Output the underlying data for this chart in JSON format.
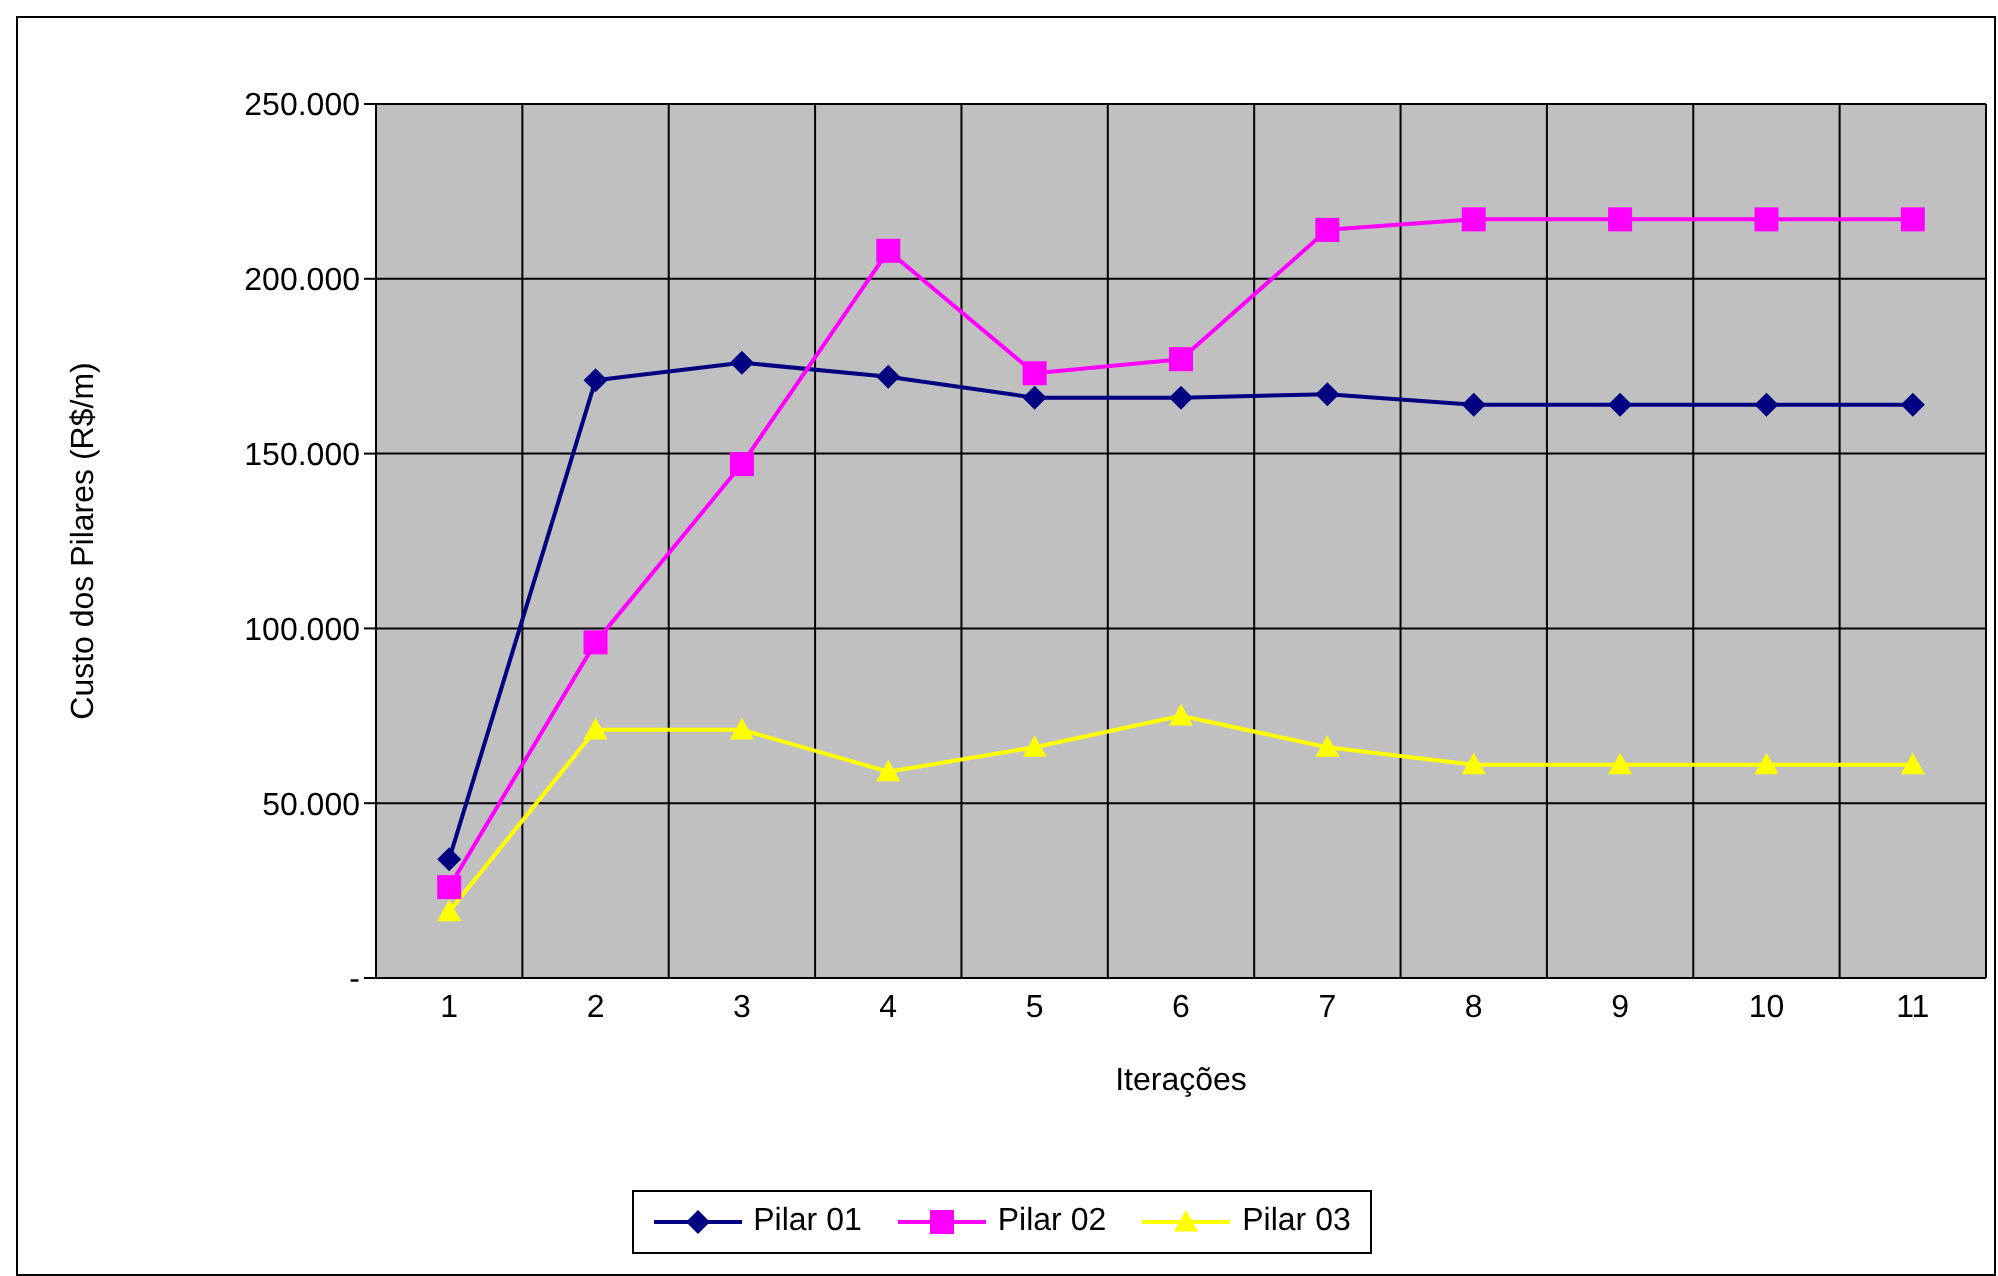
{
  "chart_data": {
    "type": "line",
    "xlabel": "Iterações",
    "ylabel": "Custo dos Pilares (R$/m)",
    "categories": [
      "1",
      "2",
      "3",
      "4",
      "5",
      "6",
      "7",
      "8",
      "9",
      "10",
      "11"
    ],
    "series": [
      {
        "name": "Pilar 01",
        "color": "#000080",
        "marker": "diamond",
        "values": [
          34000,
          171000,
          176000,
          172000,
          166000,
          166000,
          167000,
          164000,
          164000,
          164000,
          164000
        ]
      },
      {
        "name": "Pilar 02",
        "color": "#ff00ff",
        "marker": "square",
        "values": [
          26000,
          96000,
          147000,
          208000,
          173000,
          177000,
          214000,
          217000,
          217000,
          217000,
          217000
        ]
      },
      {
        "name": "Pilar 03",
        "color": "#ffff00",
        "marker": "triangle",
        "values": [
          19000,
          71000,
          71000,
          59000,
          66000,
          75000,
          66000,
          61000,
          61000,
          61000,
          61000
        ]
      }
    ],
    "ylim": [
      0,
      250000
    ],
    "yticks": [
      {
        "value": 0,
        "label": "-"
      },
      {
        "value": 50000,
        "label": "50.000"
      },
      {
        "value": 100000,
        "label": "100.000"
      },
      {
        "value": 150000,
        "label": "150.000"
      },
      {
        "value": 200000,
        "label": "200.000"
      },
      {
        "value": 250000,
        "label": "250.000"
      }
    ],
    "grid": true,
    "legend": "bottom"
  }
}
